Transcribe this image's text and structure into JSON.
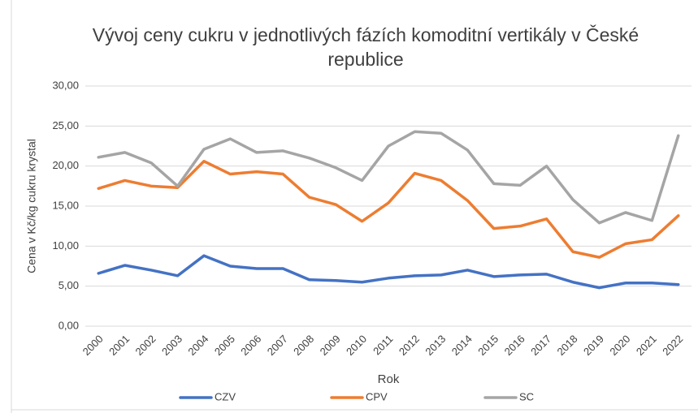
{
  "chart_data": {
    "type": "line",
    "title": "Vývoj ceny cukru v jednotlivých fázích komoditní vertikály v České republice",
    "x_label": "Rok",
    "y_label": "Cena v Kč/kg cukru krystal",
    "categories": [
      "2000",
      "2001",
      "2002",
      "2003",
      "2004",
      "2005",
      "2006",
      "2007",
      "2008",
      "2009",
      "2010",
      "2011",
      "2012",
      "2013",
      "2014",
      "2015",
      "2016",
      "2017",
      "2018",
      "2019",
      "2020",
      "2021",
      "2022"
    ],
    "series": [
      {
        "name": "CZV",
        "color": "#4472c4",
        "values": [
          6.6,
          7.6,
          7.0,
          6.3,
          8.8,
          7.5,
          7.2,
          7.2,
          5.8,
          5.7,
          5.5,
          6.0,
          6.3,
          6.4,
          7.0,
          6.2,
          6.4,
          6.5,
          5.5,
          4.8,
          5.4,
          5.4,
          5.2
        ]
      },
      {
        "name": "CPV",
        "color": "#ed7d31",
        "values": [
          17.2,
          18.2,
          17.5,
          17.3,
          20.6,
          19.0,
          19.3,
          19.0,
          16.1,
          15.2,
          13.1,
          15.4,
          19.1,
          18.2,
          15.7,
          12.2,
          12.5,
          13.4,
          9.3,
          8.6,
          10.3,
          10.8,
          13.8
        ]
      },
      {
        "name": "SC",
        "color": "#a5a5a5",
        "values": [
          21.1,
          21.7,
          20.4,
          17.5,
          22.1,
          23.4,
          21.7,
          21.9,
          21.0,
          19.8,
          18.2,
          22.5,
          24.3,
          24.1,
          22.0,
          17.8,
          17.6,
          20.0,
          15.8,
          12.9,
          14.2,
          13.2,
          23.8
        ]
      }
    ],
    "ylim": [
      0,
      30
    ],
    "yticks": [
      {
        "value": 0,
        "label": "0,00"
      },
      {
        "value": 5,
        "label": "5,00"
      },
      {
        "value": 10,
        "label": "10,00"
      },
      {
        "value": 15,
        "label": "15,00"
      },
      {
        "value": 20,
        "label": "20,00"
      },
      {
        "value": 25,
        "label": "25,00"
      },
      {
        "value": 30,
        "label": "30,00"
      }
    ],
    "grid": true,
    "legend": "bottom"
  }
}
